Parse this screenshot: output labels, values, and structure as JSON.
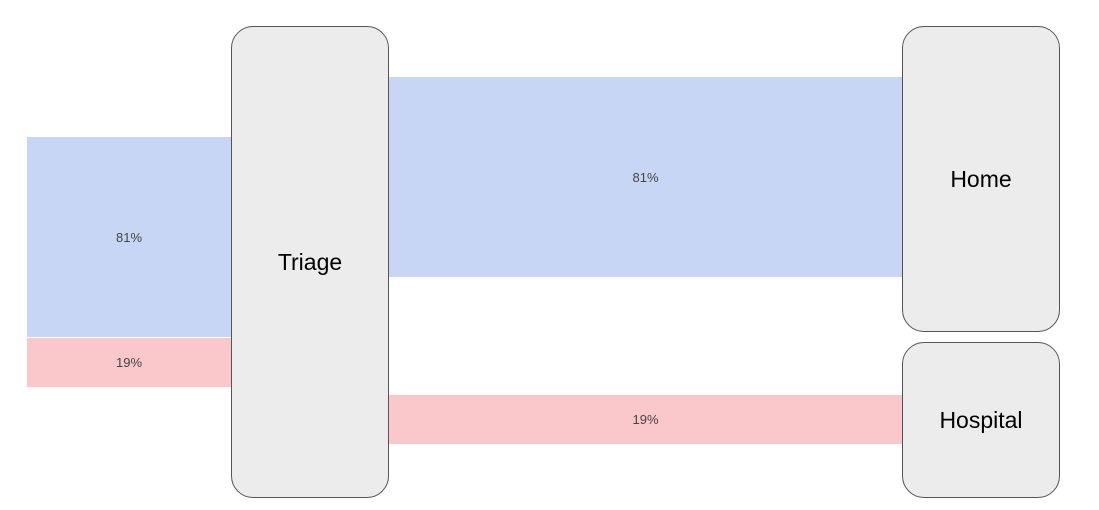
{
  "colors": {
    "home_flow": "#c8d6f6",
    "hospital_flow": "#fac8ca",
    "node_fill": "#ececec",
    "node_border": "#555555"
  },
  "nodes": {
    "triage": "Triage",
    "home": "Home",
    "hospital": "Hospital"
  },
  "flows": {
    "in_home": "81%",
    "in_hospital": "19%",
    "triage_to_home": "81%",
    "triage_to_hospital": "19%"
  }
}
